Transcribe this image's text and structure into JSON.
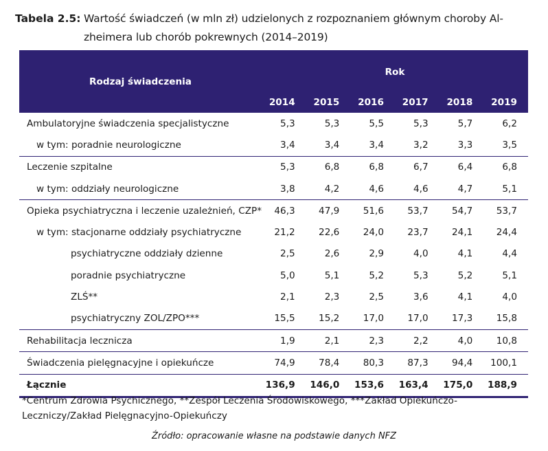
{
  "caption": {
    "label": "Tabela 2.5:",
    "line1": "Wartość świadczeń (w mln zł) udzielonych z rozpoznaniem głównym choroby Al-",
    "line2": "zheimera lub chorób pokrewnych (2014–2019)"
  },
  "table": {
    "header_type": "Rodzaj świadczenia",
    "header_year": "Rok",
    "years": [
      "2014",
      "2015",
      "2016",
      "2017",
      "2018",
      "2019"
    ],
    "rows": [
      {
        "label": "Ambulatoryjne świadczenia specjalistyczne",
        "values": [
          "5,3",
          "5,3",
          "5,5",
          "5,3",
          "5,7",
          "6,2"
        ]
      },
      {
        "label": "w tym: poradnie neurologiczne",
        "values": [
          "3,4",
          "3,4",
          "3,4",
          "3,2",
          "3,3",
          "3,5"
        ]
      },
      {
        "label": "Leczenie szpitalne",
        "values": [
          "5,3",
          "6,8",
          "6,8",
          "6,7",
          "6,4",
          "6,8"
        ]
      },
      {
        "label": "w tym: oddziały neurologiczne",
        "values": [
          "3,8",
          "4,2",
          "4,6",
          "4,6",
          "4,7",
          "5,1"
        ]
      },
      {
        "label": "Opieka psychiatryczna i leczenie uzależnień, CZP*",
        "values": [
          "46,3",
          "47,9",
          "51,6",
          "53,7",
          "54,7",
          "53,7"
        ]
      },
      {
        "label": "w tym: stacjonarne oddziały psychiatryczne",
        "values": [
          "21,2",
          "22,6",
          "24,0",
          "23,7",
          "24,1",
          "24,4"
        ]
      },
      {
        "label": "psychiatryczne oddziały dzienne",
        "values": [
          "2,5",
          "2,6",
          "2,9",
          "4,0",
          "4,1",
          "4,4"
        ]
      },
      {
        "label": "poradnie psychiatryczne",
        "values": [
          "5,0",
          "5,1",
          "5,2",
          "5,3",
          "5,2",
          "5,1"
        ]
      },
      {
        "label": "ZLŚ**",
        "values": [
          "2,1",
          "2,3",
          "2,5",
          "3,6",
          "4,1",
          "4,0"
        ]
      },
      {
        "label": "psychiatryczny ZOL/ZPO***",
        "values": [
          "15,5",
          "15,2",
          "17,0",
          "17,0",
          "17,3",
          "15,8"
        ]
      },
      {
        "label": "Rehabilitacja lecznicza",
        "values": [
          "1,9",
          "2,1",
          "2,3",
          "2,2",
          "4,0",
          "10,8"
        ]
      },
      {
        "label": "Świadczenia pielęgnacyjne i opiekuńcze",
        "values": [
          "74,9",
          "78,4",
          "80,3",
          "87,3",
          "94,4",
          "100,1"
        ]
      }
    ],
    "total": {
      "label": "Łącznie",
      "values": [
        "136,9",
        "146,0",
        "153,6",
        "163,4",
        "175,0",
        "188,9"
      ]
    }
  },
  "footnote": "*Centrum Zdrowia Psychicznego, **Zespół Leczenia Środowiskowego, ***Zakład Opiekuńczo-Leczniczy/Zakład Pielęgnacyjno-Opiekuńczy",
  "source": "Źródło: opracowanie własne na podstawie danych NFZ"
}
